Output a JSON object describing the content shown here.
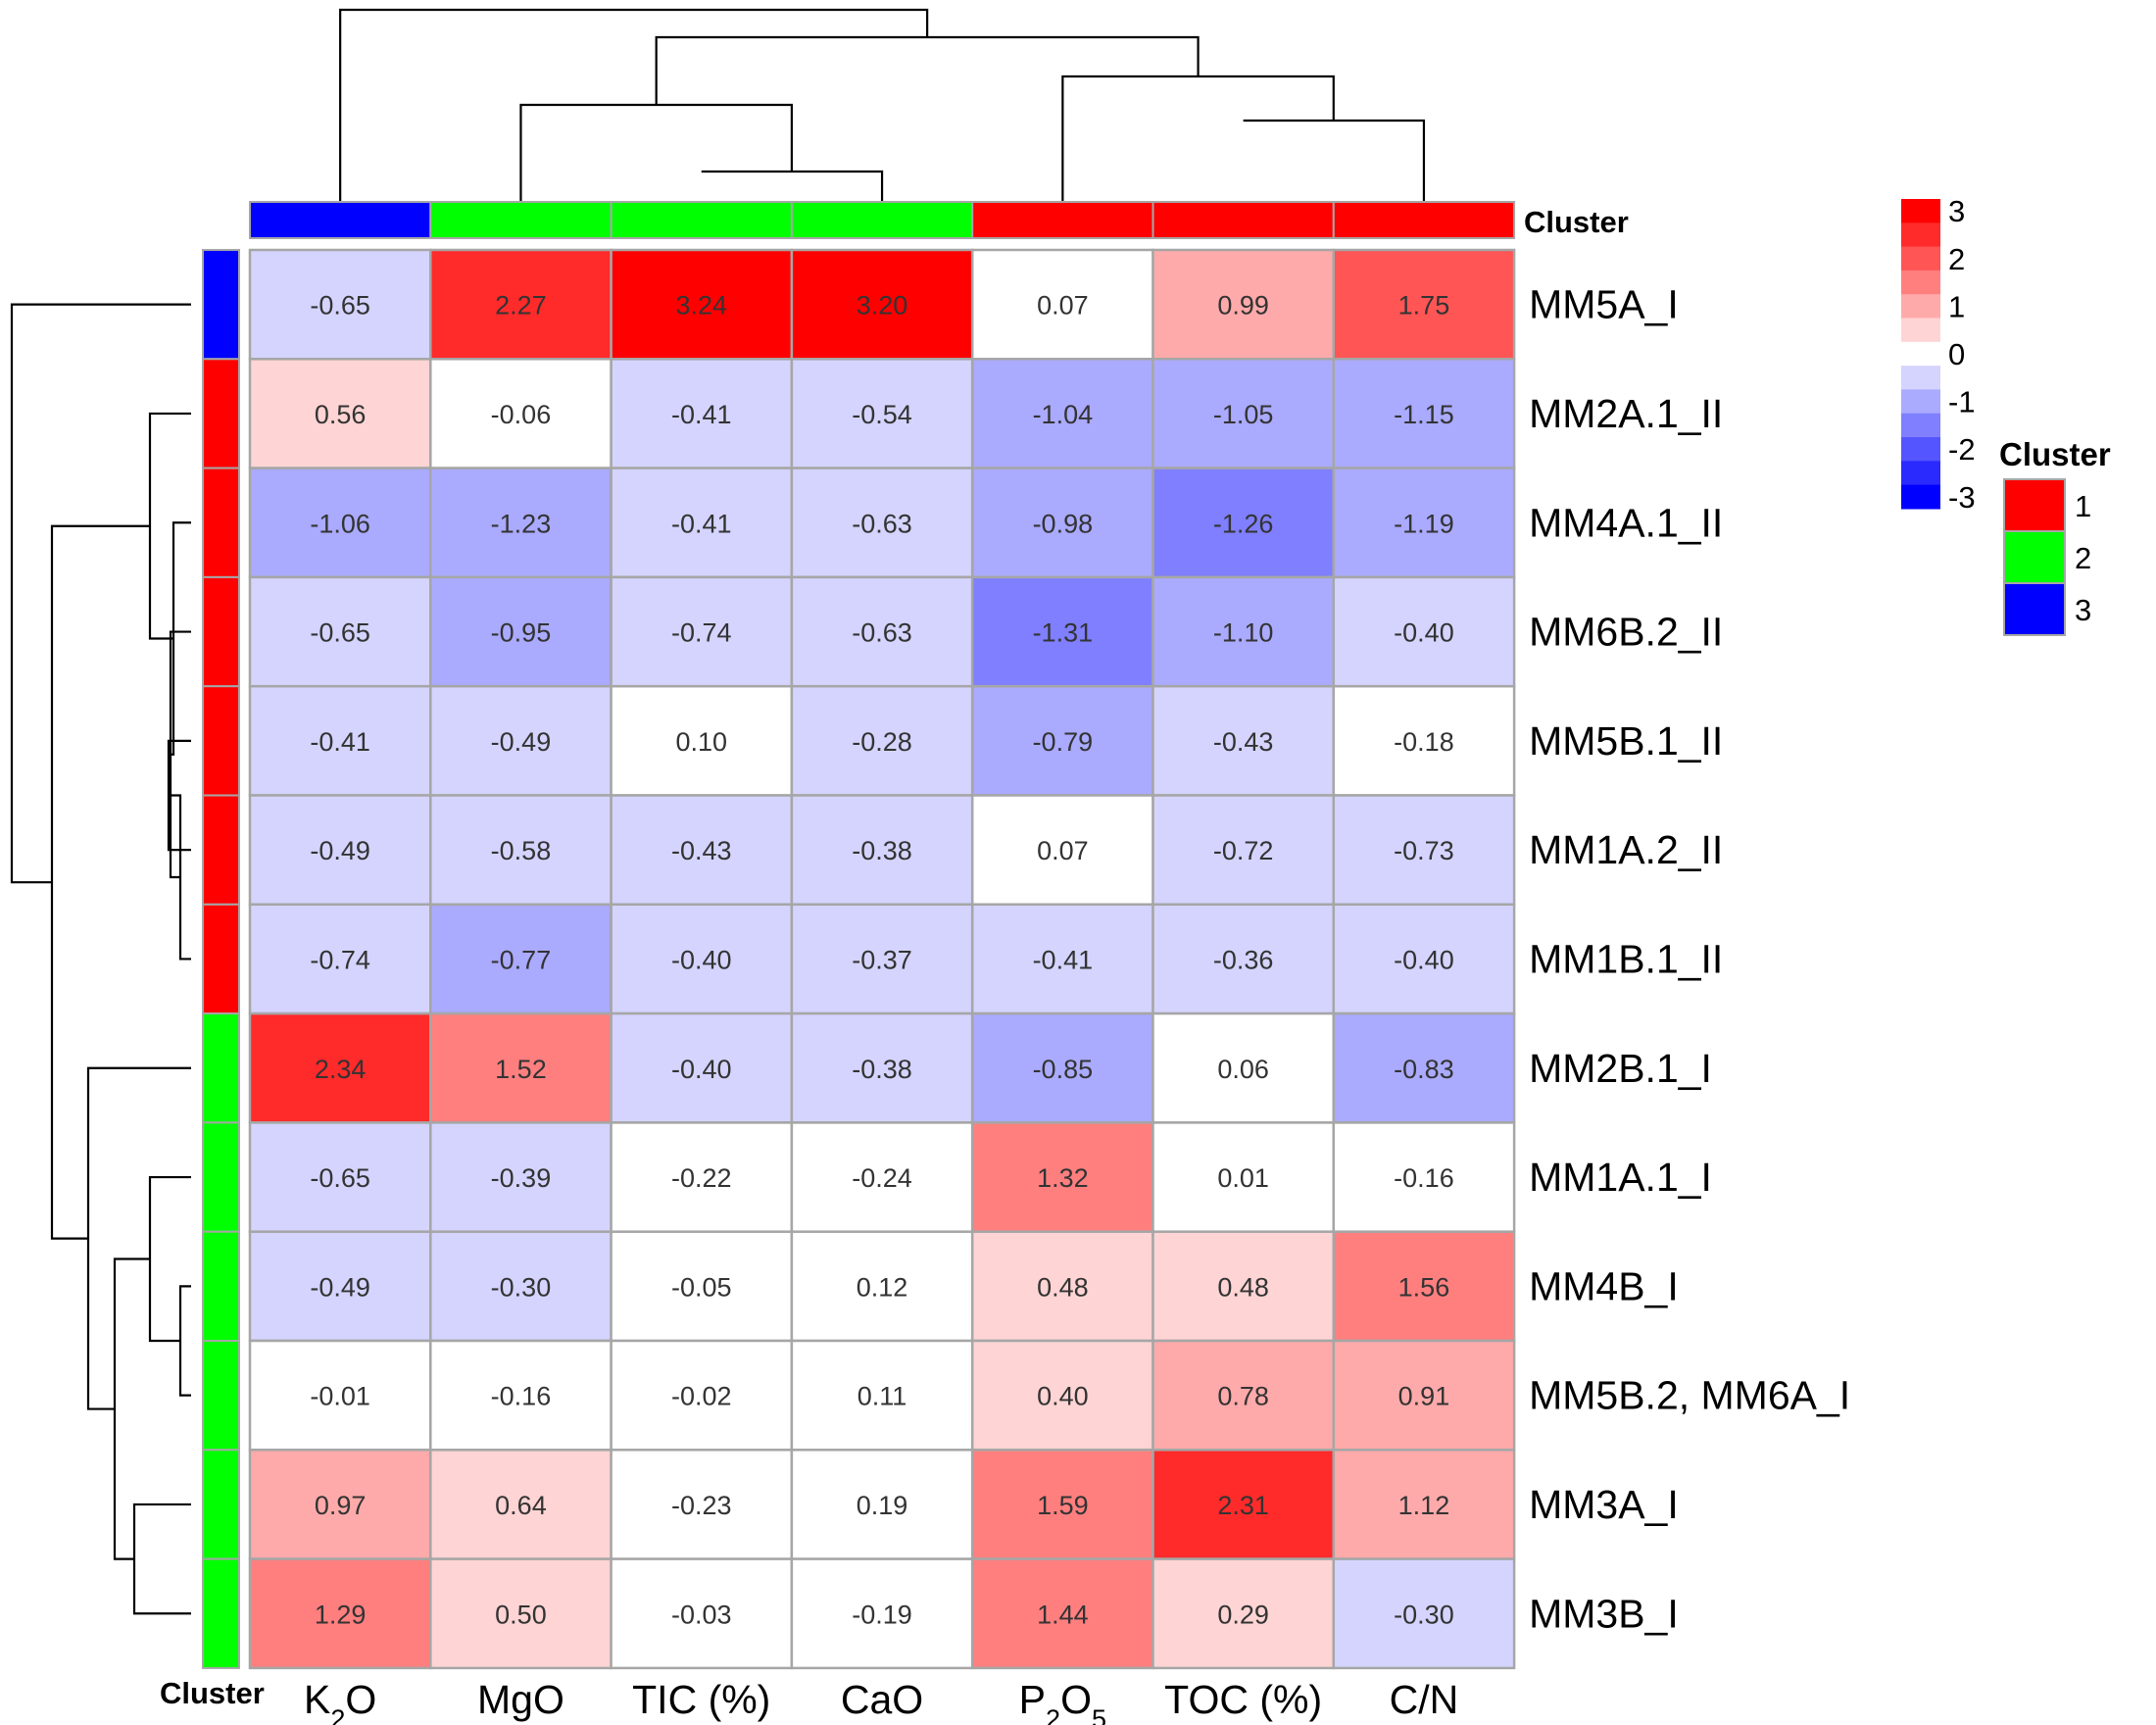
{
  "chart_data": {
    "type": "heatmap",
    "columns": [
      "K2O",
      "MgO",
      "TIC (%)",
      "CaO",
      "P2O5",
      "TOC (%)",
      "C/N"
    ],
    "column_labels": [
      {
        "base": "K",
        "sub": "2",
        "rest": "O"
      },
      {
        "base": "MgO",
        "sub": "",
        "rest": ""
      },
      {
        "base": "TIC (%)",
        "sub": "",
        "rest": ""
      },
      {
        "base": "CaO",
        "sub": "",
        "rest": ""
      },
      {
        "base": "P",
        "sub": "2",
        "rest": "O",
        "sub2": "5"
      },
      {
        "base": "TOC (%)",
        "sub": "",
        "rest": ""
      },
      {
        "base": "C/N",
        "sub": "",
        "rest": ""
      }
    ],
    "rows": [
      "MM5A_I",
      "MM2A.1_II",
      "MM4A.1_II",
      "MM6B.2_II",
      "MM5B.1_II",
      "MM1A.2_II",
      "MM1B.1_II",
      "MM2B.1_I",
      "MM1A.1_I",
      "MM4B_I",
      "MM5B.2, MM6A_I",
      "MM3A_I",
      "MM3B_I"
    ],
    "values": [
      [
        -0.65,
        2.27,
        3.24,
        3.2,
        0.07,
        0.99,
        1.75
      ],
      [
        0.56,
        -0.06,
        -0.41,
        -0.54,
        -1.04,
        -1.05,
        -1.15
      ],
      [
        -1.06,
        -1.23,
        -0.41,
        -0.63,
        -0.98,
        -1.26,
        -1.19
      ],
      [
        -0.65,
        -0.95,
        -0.74,
        -0.63,
        -1.31,
        -1.1,
        -0.4
      ],
      [
        -0.41,
        -0.49,
        0.1,
        -0.28,
        -0.79,
        -0.43,
        -0.18
      ],
      [
        -0.49,
        -0.58,
        -0.43,
        -0.38,
        0.07,
        -0.72,
        -0.73
      ],
      [
        -0.74,
        -0.77,
        -0.4,
        -0.37,
        -0.41,
        -0.36,
        -0.4
      ],
      [
        2.34,
        1.52,
        -0.4,
        -0.38,
        -0.85,
        0.06,
        -0.83
      ],
      [
        -0.65,
        -0.39,
        -0.22,
        -0.24,
        1.32,
        0.01,
        -0.16
      ],
      [
        -0.49,
        -0.3,
        -0.05,
        0.12,
        0.48,
        0.48,
        1.56
      ],
      [
        -0.01,
        -0.16,
        -0.02,
        0.11,
        0.4,
        0.78,
        0.91
      ],
      [
        0.97,
        0.64,
        -0.23,
        0.19,
        1.59,
        2.31,
        1.12
      ],
      [
        1.29,
        0.5,
        -0.03,
        -0.19,
        1.44,
        0.29,
        -0.3
      ]
    ],
    "column_clusters": [
      3,
      2,
      2,
      2,
      1,
      1,
      1
    ],
    "row_clusters": [
      3,
      1,
      1,
      1,
      1,
      1,
      1,
      2,
      2,
      2,
      2,
      2,
      2
    ],
    "cluster_colors": {
      "1": "#FF0000",
      "2": "#00FF00",
      "3": "#0000FF"
    },
    "annotation_title": "Cluster",
    "color_scale": {
      "range": [
        -3,
        3
      ],
      "ticks": [
        "3",
        "2",
        "1",
        "0",
        "-1",
        "-2",
        "-3"
      ],
      "low": "#0000FF",
      "mid": "#FFFFFF",
      "high": "#FF0000",
      "breaks": [
        -3.25,
        -2.75,
        -2.25,
        -1.75,
        -1.25,
        -0.75,
        -0.25,
        0.25,
        0.75,
        1.25,
        1.75,
        2.25,
        2.75,
        3.25
      ],
      "bins": [
        "#0000FF",
        "#2A2AFF",
        "#5555FF",
        "#7F7FFF",
        "#AAAAFF",
        "#D4D4FF",
        "#FFFFFF",
        "#FFD4D4",
        "#FFAAAA",
        "#FF7F7F",
        "#FF5555",
        "#FF2A2A",
        "#FF0000"
      ]
    },
    "legend": {
      "title": "Cluster",
      "entries": [
        "1",
        "2",
        "3"
      ],
      "colors": [
        "#FF0000",
        "#00FF00",
        "#0000FF"
      ]
    },
    "grid": true
  }
}
